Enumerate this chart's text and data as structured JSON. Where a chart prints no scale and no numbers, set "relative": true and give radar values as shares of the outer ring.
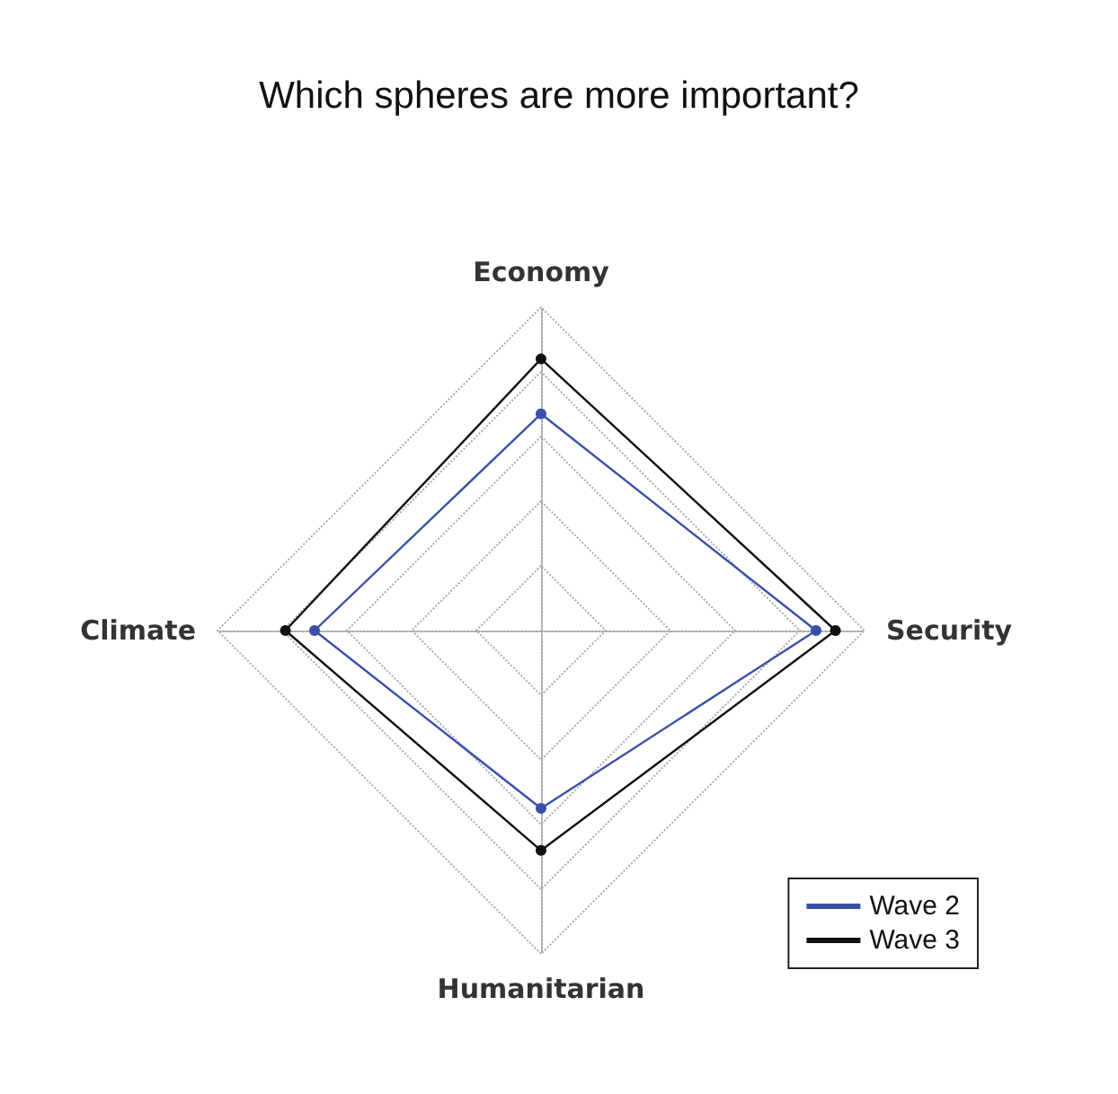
{
  "chart_data": {
    "type": "radar",
    "title": "Which spheres are more important?",
    "categories": [
      "Economy",
      "Security",
      "Humanitarian",
      "Climate"
    ],
    "relative": true,
    "grid": true,
    "legend": "bottom right",
    "marker": "circle",
    "line_style": "solid",
    "series": [
      {
        "name": "Wave 2",
        "color": "#3a50a8",
        "values": [
          0.67,
          0.85,
          0.55,
          0.7
        ]
      },
      {
        "name": "Wave 3",
        "color": "#111111",
        "values": [
          0.84,
          0.91,
          0.68,
          0.79
        ]
      }
    ]
  }
}
